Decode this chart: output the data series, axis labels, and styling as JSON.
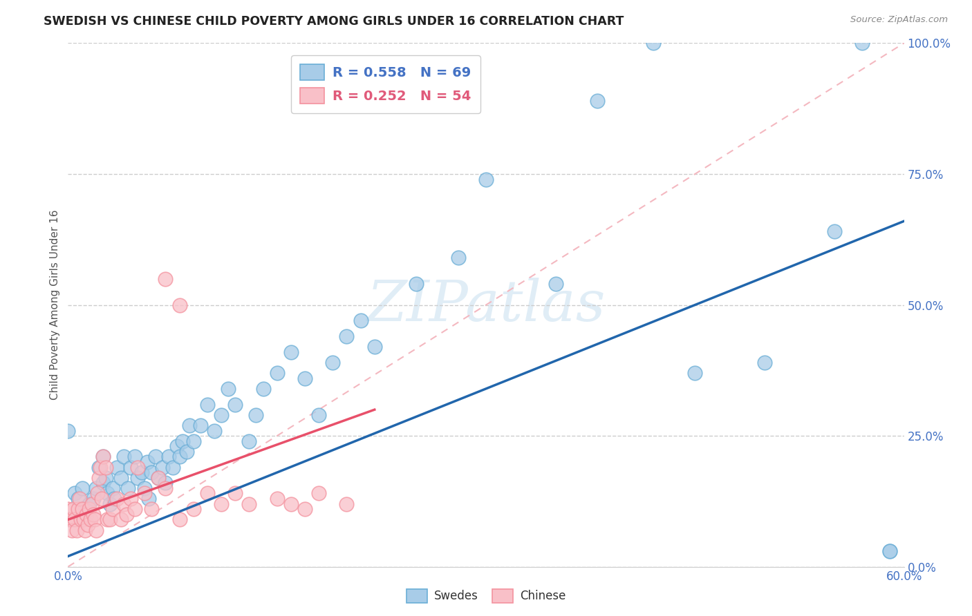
{
  "title": "SWEDISH VS CHINESE CHILD POVERTY AMONG GIRLS UNDER 16 CORRELATION CHART",
  "source": "Source: ZipAtlas.com",
  "ylabel": "Child Poverty Among Girls Under 16",
  "xlim": [
    0.0,
    0.6
  ],
  "ylim": [
    0.0,
    1.0
  ],
  "xticks": [
    0.0,
    0.6
  ],
  "yticks": [
    0.0,
    0.25,
    0.5,
    0.75,
    1.0
  ],
  "xticklabels": [
    "0.0%",
    "60.0%"
  ],
  "yticklabels": [
    "0.0%",
    "25.0%",
    "50.0%",
    "75.0%",
    "100.0%"
  ],
  "legend_blue_r": "R = 0.558",
  "legend_blue_n": "N = 69",
  "legend_pink_r": "R = 0.252",
  "legend_pink_n": "N = 54",
  "blue_color": "#a8cce8",
  "pink_color": "#f9c0c8",
  "blue_edge_color": "#6aaed6",
  "pink_edge_color": "#f4929e",
  "blue_line_color": "#2166ac",
  "pink_line_color": "#e8506a",
  "diag_color": "#f4b8c0",
  "watermark": "ZIPatlas",
  "blue_line_x": [
    0.0,
    0.6
  ],
  "blue_line_y": [
    0.02,
    0.66
  ],
  "pink_line_x": [
    0.0,
    0.22
  ],
  "pink_line_y": [
    0.09,
    0.3
  ],
  "blue_scatter_x": [
    0.0,
    0.005,
    0.007,
    0.01,
    0.012,
    0.015,
    0.018,
    0.02,
    0.022,
    0.025,
    0.025,
    0.027,
    0.028,
    0.03,
    0.032,
    0.033,
    0.035,
    0.038,
    0.04,
    0.043,
    0.045,
    0.048,
    0.05,
    0.053,
    0.055,
    0.057,
    0.058,
    0.06,
    0.063,
    0.065,
    0.068,
    0.07,
    0.072,
    0.075,
    0.078,
    0.08,
    0.082,
    0.085,
    0.087,
    0.09,
    0.095,
    0.1,
    0.105,
    0.11,
    0.115,
    0.12,
    0.13,
    0.135,
    0.14,
    0.15,
    0.16,
    0.17,
    0.18,
    0.19,
    0.2,
    0.21,
    0.22,
    0.25,
    0.28,
    0.3,
    0.35,
    0.38,
    0.42,
    0.45,
    0.5,
    0.55,
    0.57,
    0.59,
    0.59
  ],
  "blue_scatter_y": [
    0.26,
    0.14,
    0.13,
    0.15,
    0.11,
    0.12,
    0.13,
    0.15,
    0.19,
    0.16,
    0.21,
    0.17,
    0.14,
    0.12,
    0.15,
    0.13,
    0.19,
    0.17,
    0.21,
    0.15,
    0.19,
    0.21,
    0.17,
    0.18,
    0.15,
    0.2,
    0.13,
    0.18,
    0.21,
    0.17,
    0.19,
    0.16,
    0.21,
    0.19,
    0.23,
    0.21,
    0.24,
    0.22,
    0.27,
    0.24,
    0.27,
    0.31,
    0.26,
    0.29,
    0.34,
    0.31,
    0.24,
    0.29,
    0.34,
    0.37,
    0.41,
    0.36,
    0.29,
    0.39,
    0.44,
    0.47,
    0.42,
    0.54,
    0.59,
    0.74,
    0.54,
    0.89,
    1.0,
    0.37,
    0.39,
    0.64,
    1.0,
    0.03,
    0.03
  ],
  "pink_scatter_x": [
    0.0,
    0.001,
    0.002,
    0.003,
    0.004,
    0.005,
    0.006,
    0.007,
    0.008,
    0.009,
    0.01,
    0.011,
    0.012,
    0.013,
    0.014,
    0.015,
    0.016,
    0.017,
    0.018,
    0.019,
    0.02,
    0.021,
    0.022,
    0.023,
    0.024,
    0.025,
    0.027,
    0.028,
    0.03,
    0.032,
    0.035,
    0.038,
    0.04,
    0.042,
    0.045,
    0.048,
    0.05,
    0.055,
    0.06,
    0.065,
    0.07,
    0.08,
    0.09,
    0.1,
    0.11,
    0.12,
    0.13,
    0.15,
    0.16,
    0.17,
    0.18,
    0.2,
    0.07,
    0.08
  ],
  "pink_scatter_y": [
    0.11,
    0.09,
    0.09,
    0.07,
    0.11,
    0.09,
    0.07,
    0.11,
    0.13,
    0.09,
    0.11,
    0.09,
    0.07,
    0.1,
    0.08,
    0.11,
    0.09,
    0.12,
    0.1,
    0.09,
    0.07,
    0.14,
    0.17,
    0.19,
    0.13,
    0.21,
    0.19,
    0.09,
    0.09,
    0.11,
    0.13,
    0.09,
    0.12,
    0.1,
    0.13,
    0.11,
    0.19,
    0.14,
    0.11,
    0.17,
    0.15,
    0.09,
    0.11,
    0.14,
    0.12,
    0.14,
    0.12,
    0.13,
    0.12,
    0.11,
    0.14,
    0.12,
    0.55,
    0.5
  ]
}
